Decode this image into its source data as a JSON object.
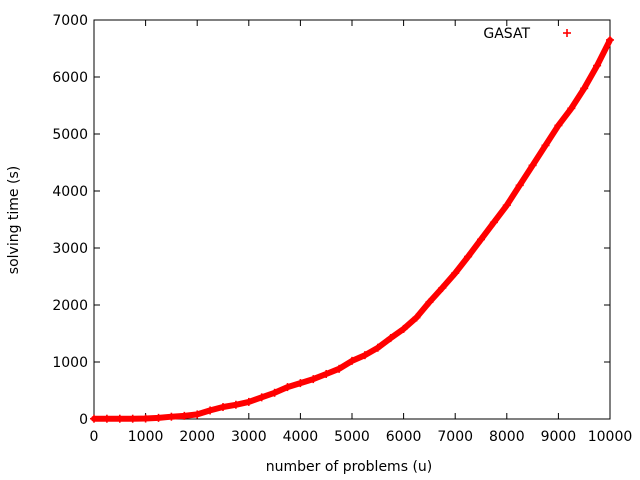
{
  "chart_data": {
    "type": "scatter",
    "title": "",
    "xlabel": "number of problems (u)",
    "ylabel": "solving time (s)",
    "xlim": [
      0,
      10000
    ],
    "ylim": [
      0,
      7000
    ],
    "grid": false,
    "legend_position": "top-right",
    "x_ticks": [
      "0",
      "1000",
      "2000",
      "3000",
      "4000",
      "5000",
      "6000",
      "7000",
      "8000",
      "9000",
      "10000"
    ],
    "y_ticks": [
      "0",
      "1000",
      "2000",
      "3000",
      "4000",
      "5000",
      "6000",
      "7000"
    ],
    "series": [
      {
        "name": "GASAT",
        "color": "#ff0000",
        "marker": "plus",
        "x": [
          0,
          250,
          500,
          750,
          1000,
          1250,
          1500,
          1750,
          2000,
          2250,
          2500,
          2750,
          3000,
          3250,
          3500,
          3750,
          4000,
          4250,
          4500,
          4750,
          5000,
          5250,
          5500,
          5750,
          6000,
          6250,
          6500,
          6750,
          7000,
          7250,
          7500,
          7750,
          8000,
          8250,
          8500,
          8750,
          9000,
          9250,
          9500,
          9750,
          10000
        ],
        "y": [
          5,
          5,
          5,
          5,
          8,
          20,
          40,
          55,
          80,
          150,
          210,
          250,
          300,
          380,
          460,
          560,
          630,
          700,
          790,
          880,
          1020,
          1120,
          1250,
          1420,
          1580,
          1780,
          2050,
          2300,
          2560,
          2850,
          3150,
          3450,
          3750,
          4100,
          4450,
          4800,
          5150,
          5450,
          5800,
          6200,
          6650
        ]
      }
    ]
  }
}
